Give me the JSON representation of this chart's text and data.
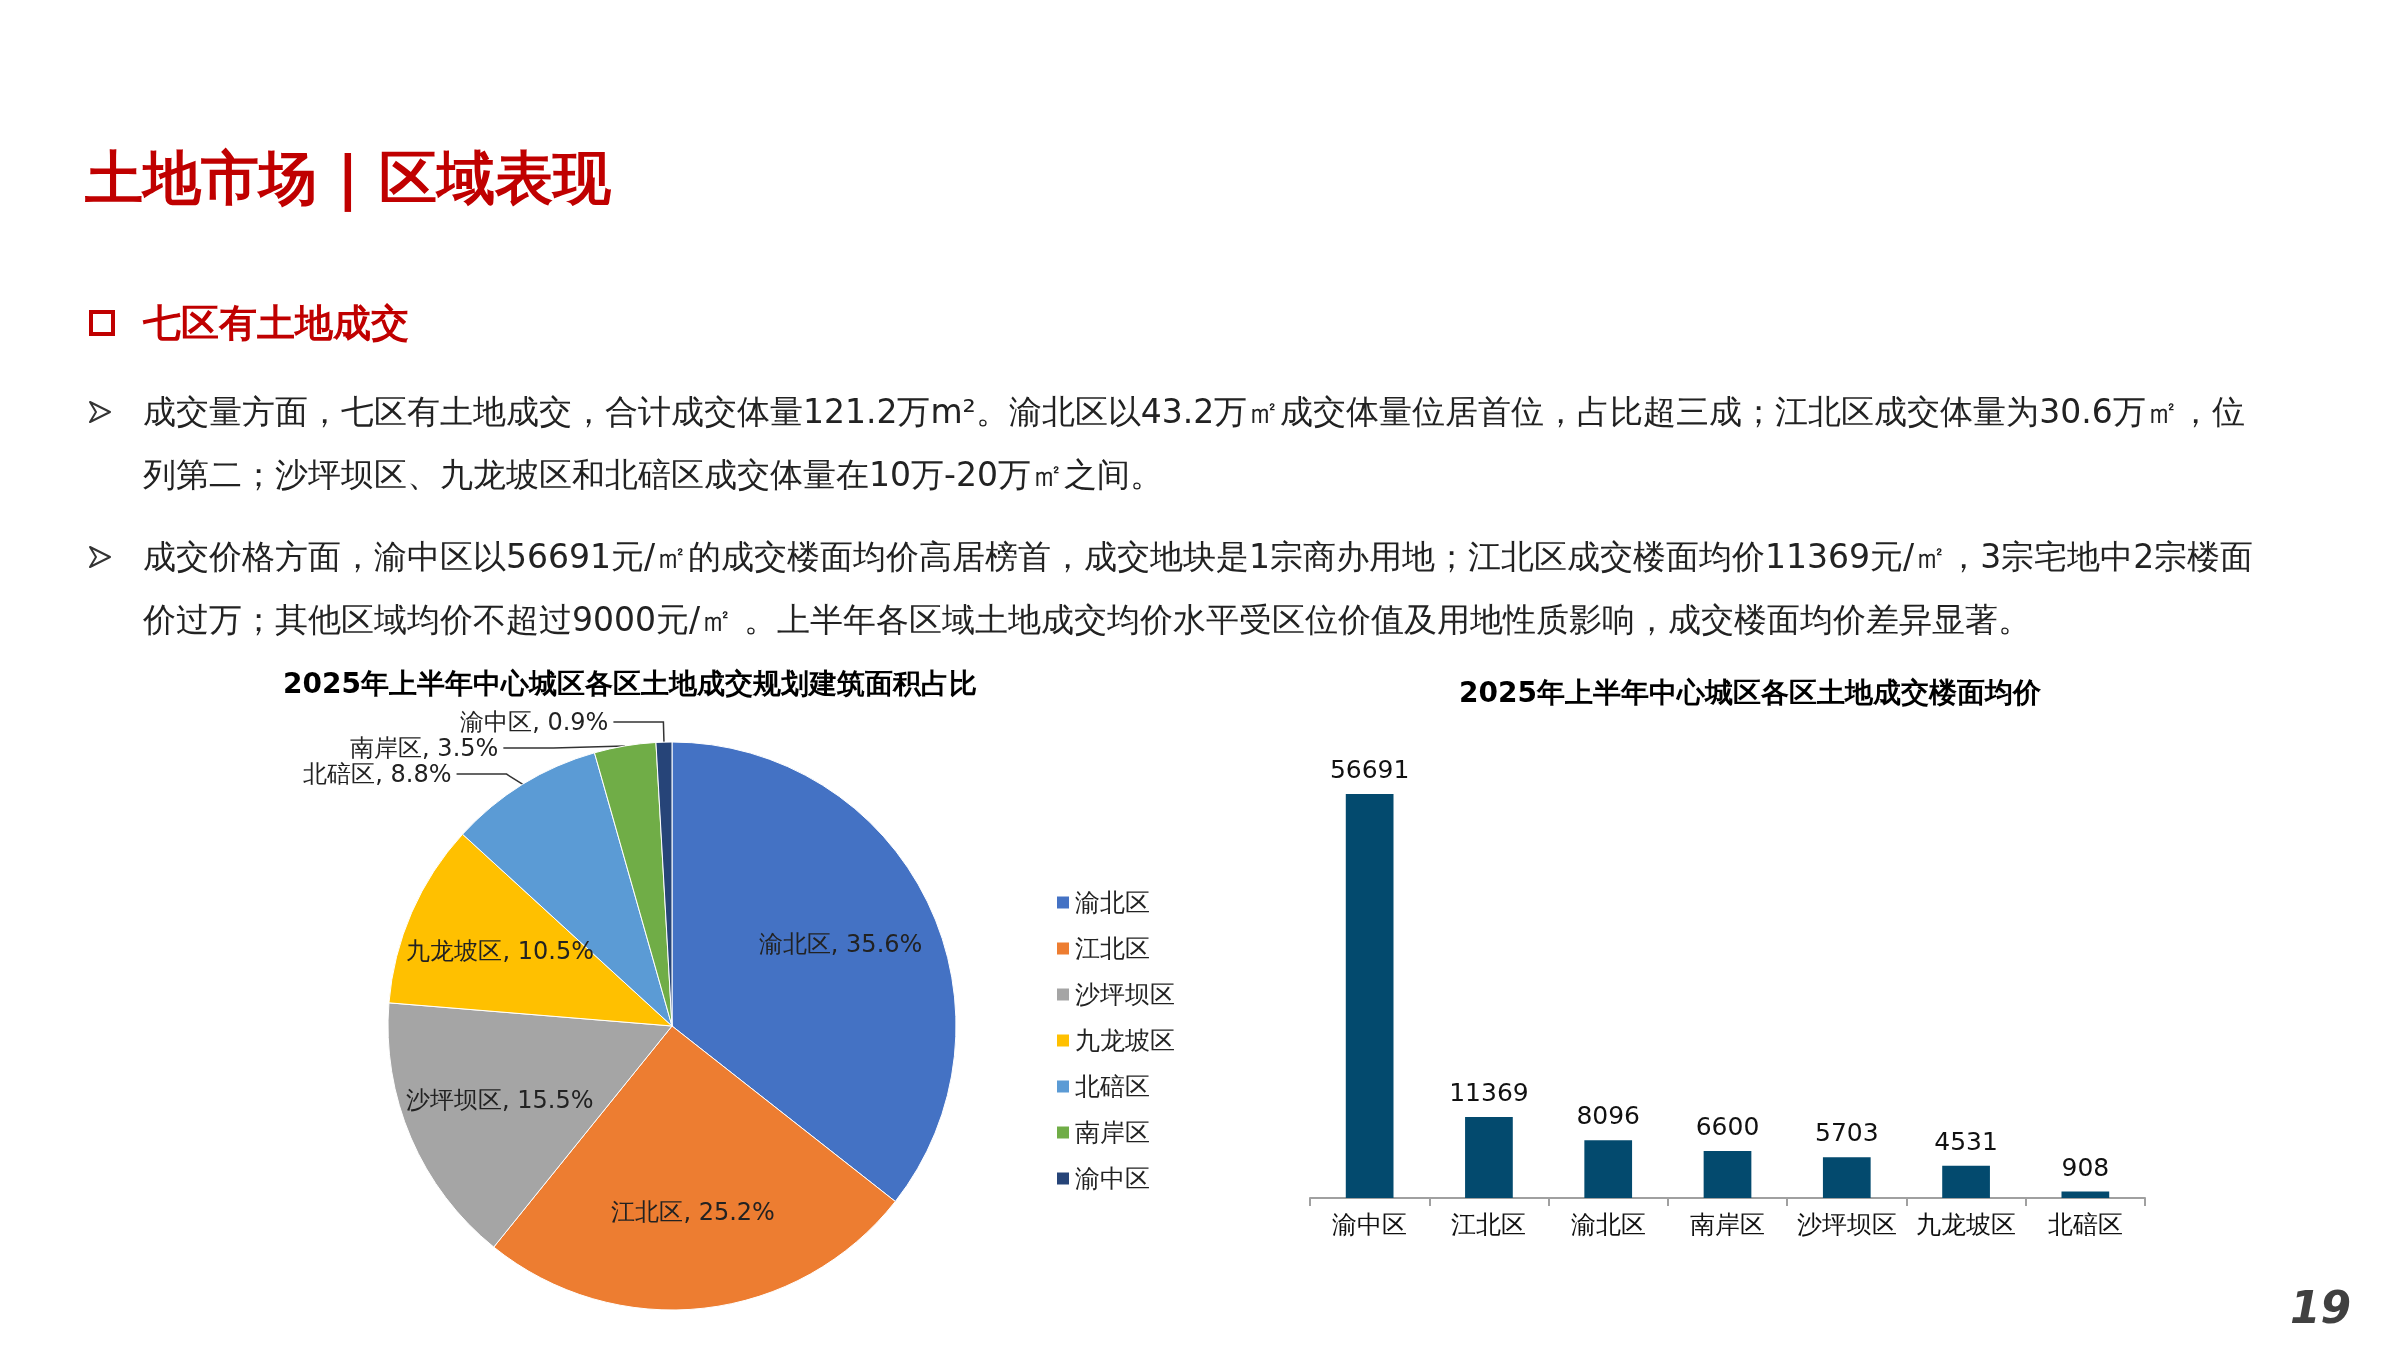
{
  "chart_data": [
    {
      "type": "other",
      "title": "土地市场 | 区域表现",
      "subtitle": "七区有土地成交",
      "annotations": [
        "成交量方面，七区有土地成交，合计成交体量121.2万m²。渝北区以43.2万㎡成交体量位居首位，占比超三成；江北区成交体量为30.6万㎡，位列第二；沙坪坝区、九龙坡区和北碚区成交体量在10万-20万㎡之间。",
        "成交价格方面，渝中区以56691元/㎡的成交楼面均价高居榜首，成交地块是1宗商办用地；江北区成交楼面均价11369元/㎡，3宗宅地中2宗楼面价过万；其他区域均价不超过9000元/㎡ 。上半年各区域土地成交均价水平受区位价值及用地性质影响，成交楼面均价差异显著。",
        "19"
      ]
    },
    {
      "type": "pie",
      "title": "2025年上半年中心城区各区土地成交规划建筑面积占比",
      "categories": [
        "渝北区",
        "江北区",
        "沙坪坝区",
        "九龙坡区",
        "北碚区",
        "南岸区",
        "渝中区"
      ],
      "values": [
        35.6,
        25.2,
        15.5,
        10.5,
        8.8,
        3.5,
        0.9
      ],
      "colors": [
        "#4472c4",
        "#ed7d31",
        "#a5a5a5",
        "#ffc000",
        "#5b9bd5",
        "#70ad47",
        "#264478"
      ],
      "value_labels": [
        "渝北区, 35.6%",
        "江北区, 25.2%",
        "沙坪坝区, 15.5%",
        "九龙坡区, 10.5%",
        "北碚区, 8.8%",
        "南岸区, 3.5%",
        "渝中区, 0.9%"
      ],
      "legend": "right"
    },
    {
      "type": "bar",
      "title": "2025年上半年中心城区各区土地成交楼面均价",
      "categories": [
        "渝中区",
        "江北区",
        "渝北区",
        "南岸区",
        "沙坪坝区",
        "九龙坡区",
        "北碚区"
      ],
      "values": [
        56691,
        11369,
        8096,
        6600,
        5703,
        4531,
        908
      ],
      "color": "#034a6e",
      "data_labels": true
    }
  ]
}
